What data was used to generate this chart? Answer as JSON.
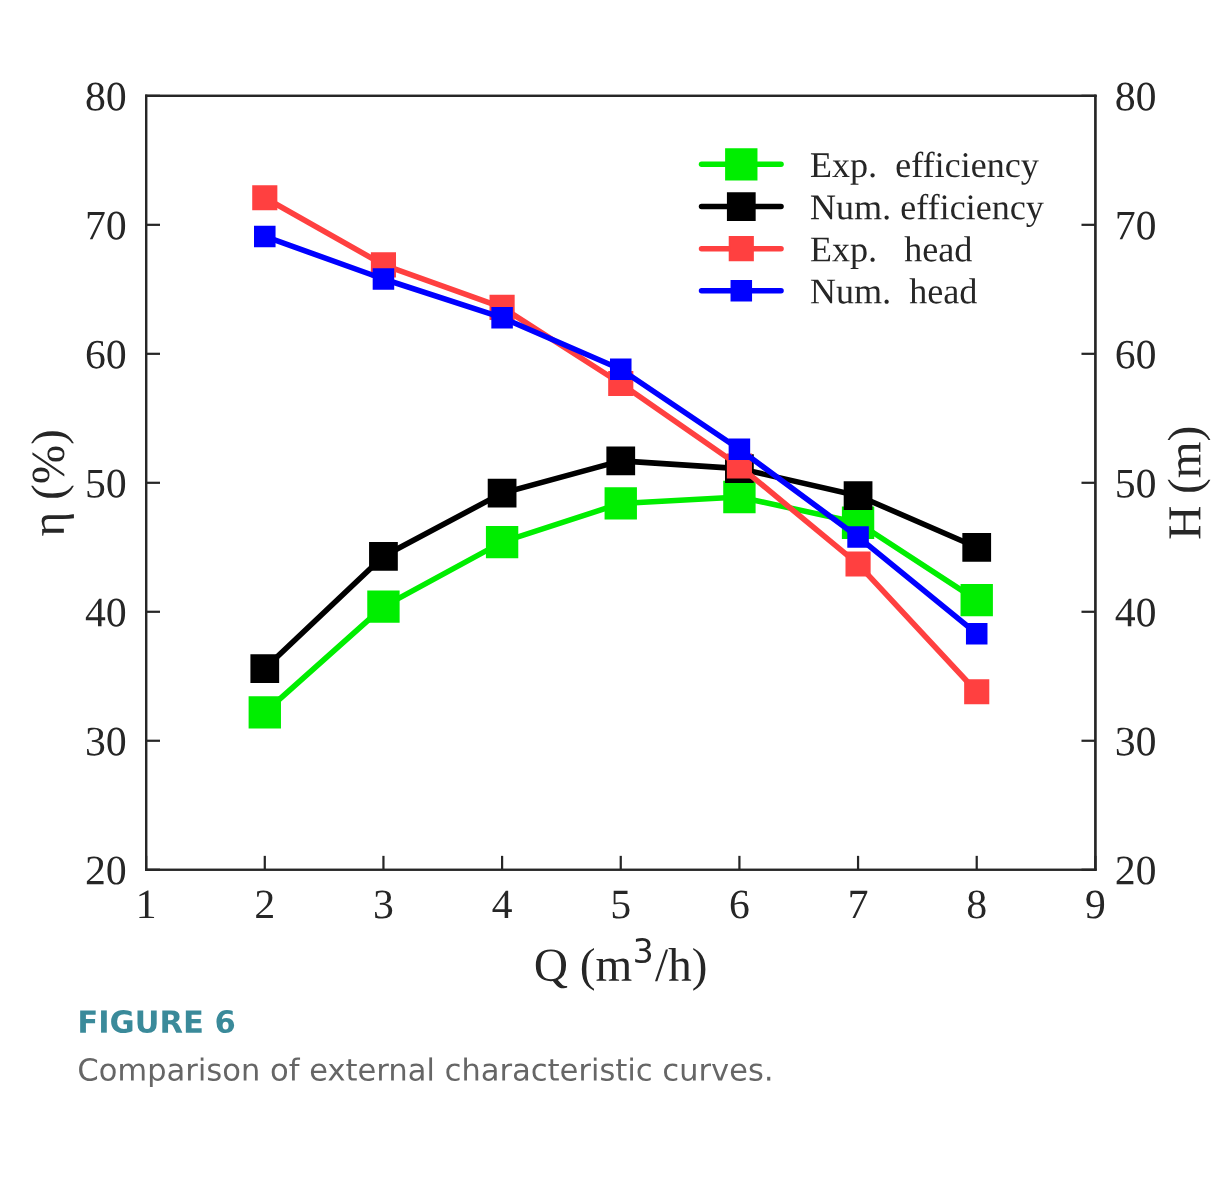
{
  "chart_data": {
    "type": "line",
    "x": [
      2,
      3,
      4,
      5,
      6,
      7,
      8
    ],
    "series": [
      {
        "name": "Exp.  efficiency",
        "color": "#00ee00",
        "values": [
          32.2,
          40.4,
          45.4,
          48.4,
          48.9,
          46.9,
          40.9
        ]
      },
      {
        "name": "Num. efficiency",
        "color": "#000000",
        "values": [
          35.6,
          44.3,
          49.2,
          51.7,
          51.1,
          49.0,
          45.0
        ]
      },
      {
        "name": "Exp.   head",
        "color": "#ff4040",
        "values": [
          72.1,
          66.9,
          63.6,
          57.7,
          51.3,
          43.7,
          33.8
        ]
      },
      {
        "name": "Num.  head",
        "color": "#0000ff",
        "values": [
          69.1,
          65.8,
          62.8,
          58.8,
          52.6,
          45.8,
          38.3
        ]
      }
    ],
    "xlabel": "Q (m$^{3}$/h)",
    "ylabel": "η (%)",
    "y2label": "H (m)",
    "xlim": [
      1,
      9
    ],
    "xticks": [
      1,
      2,
      3,
      4,
      5,
      6,
      7,
      8,
      9
    ],
    "ylim": [
      20,
      80
    ],
    "yticks": [
      20,
      30,
      40,
      50,
      60,
      70,
      80
    ],
    "y2lim": [
      20,
      80
    ],
    "y2ticks": [
      20,
      30,
      40,
      50,
      60,
      70,
      80
    ],
    "marker": "square",
    "line_style": "solid",
    "legend": "top right",
    "grid": false,
    "annotations": [
      "FIGURE 6",
      "Comparison of external characteristic curves."
    ]
  }
}
